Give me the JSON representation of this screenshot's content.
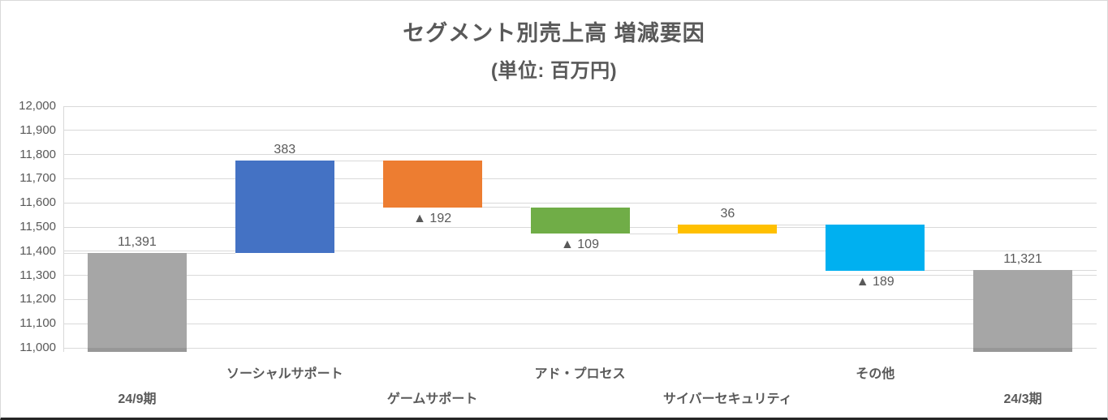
{
  "title": "セグメント別売上高 増減要因",
  "subtitle": "(単位: 百万円)",
  "chart_data": {
    "type": "waterfall",
    "title": "セグメント別売上高 増減要因",
    "subtitle": "(単位: 百万円)",
    "unit_label": "百万円",
    "grid": "horizontal",
    "legend": null,
    "y_axis": {
      "min": 11000,
      "max": 12000,
      "step": 100,
      "tick_labels": [
        "12,000",
        "11,900",
        "11,800",
        "11,700",
        "11,600",
        "11,500",
        "11,400",
        "11,300",
        "11,200",
        "11,100",
        "11,000"
      ]
    },
    "bars": [
      {
        "category": "24/9期",
        "row": "lower",
        "kind": "total",
        "from": 11000,
        "to": 11391,
        "value": 11391,
        "label": "11,391",
        "label_position": "above",
        "color": "#A6A6A6"
      },
      {
        "category": "ソーシャルサポート",
        "row": "upper",
        "kind": "increase",
        "from": 11391,
        "to": 11774,
        "value": 383,
        "label": "383",
        "label_position": "above",
        "color": "#4472C4"
      },
      {
        "category": "ゲームサポート",
        "row": "lower",
        "kind": "decrease",
        "from": 11774,
        "to": 11582,
        "value": -192,
        "label": "▲ 192",
        "label_position": "below",
        "color": "#ED7D31"
      },
      {
        "category": "アド・プロセス",
        "row": "upper",
        "kind": "decrease",
        "from": 11582,
        "to": 11473,
        "value": -109,
        "label": "▲ 109",
        "label_position": "below",
        "color": "#70AD47"
      },
      {
        "category": "サイバーセキュリティ",
        "row": "lower",
        "kind": "increase",
        "from": 11473,
        "to": 11509,
        "value": 36,
        "label": "36",
        "label_position": "above",
        "color": "#FFC000"
      },
      {
        "category": "その他",
        "row": "upper",
        "kind": "decrease",
        "from": 11509,
        "to": 11320,
        "value": -189,
        "label": "▲ 189",
        "label_position": "below",
        "color": "#00B0F0"
      },
      {
        "category": "24/3期",
        "row": "lower",
        "kind": "total",
        "from": 11000,
        "to": 11321,
        "value": 11321,
        "label": "11,321",
        "label_position": "above",
        "color": "#A6A6A6"
      }
    ],
    "colors": {
      "gridline": "#D9D9D9",
      "connector": "#D9D9D9",
      "axis_text": "#595959",
      "title_text": "#595959",
      "total_bar": "#A6A6A6"
    }
  }
}
